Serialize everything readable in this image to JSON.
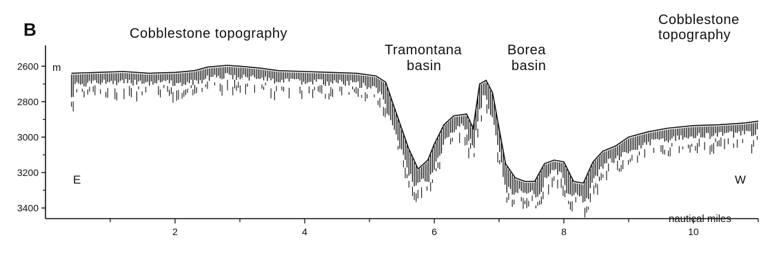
{
  "panel_letter": "B",
  "annotations": {
    "cobblestone_left": "Cobblestone topography",
    "tramontana_line1": "Tramontana",
    "tramontana_line2": "basin",
    "borea_line1": "Borea",
    "borea_line2": "basin",
    "cobblestone_right_line1": "Cobblestone",
    "cobblestone_right_line2": "topography"
  },
  "directions": {
    "east": "E",
    "west": "W"
  },
  "y_axis": {
    "unit": "m",
    "ticks": [
      "2600",
      "2800",
      "3000",
      "3200",
      "3400"
    ],
    "values": [
      2600,
      2800,
      3000,
      3200,
      3400
    ],
    "range": [
      2560,
      3460
    ]
  },
  "x_axis": {
    "label": "nautical miles",
    "ticks": [
      "2",
      "4",
      "6",
      "8",
      "10"
    ],
    "values": [
      2,
      4,
      6,
      8,
      10
    ],
    "range": [
      0,
      11
    ]
  },
  "chart_data": {
    "type": "line",
    "x": [
      0.4,
      0.8,
      1.2,
      1.6,
      2.0,
      2.3,
      2.5,
      2.8,
      3.0,
      3.3,
      3.6,
      4.0,
      4.4,
      4.8,
      5.1,
      5.25,
      5.4,
      5.6,
      5.75,
      5.9,
      6.0,
      6.15,
      6.3,
      6.5,
      6.6,
      6.7,
      6.8,
      6.9,
      7.0,
      7.1,
      7.25,
      7.4,
      7.55,
      7.7,
      7.85,
      8.0,
      8.15,
      8.3,
      8.45,
      8.6,
      8.8,
      9.0,
      9.3,
      9.6,
      10.0,
      10.4,
      10.8,
      11.0
    ],
    "series": [
      {
        "values": [
          2640,
          2635,
          2630,
          2640,
          2635,
          2625,
          2605,
          2595,
          2600,
          2610,
          2625,
          2630,
          2635,
          2640,
          2655,
          2690,
          2850,
          3060,
          3180,
          3130,
          3040,
          2930,
          2880,
          2870,
          2950,
          2700,
          2680,
          2750,
          2950,
          3150,
          3230,
          3250,
          3250,
          3150,
          3130,
          3140,
          3250,
          3260,
          3140,
          3080,
          3050,
          3000,
          2970,
          2950,
          2935,
          2930,
          2920,
          2910
        ]
      }
    ],
    "xlim": [
      0,
      11
    ],
    "ylim": [
      2560,
      3460
    ],
    "y_inverted": true,
    "grid": false
  }
}
